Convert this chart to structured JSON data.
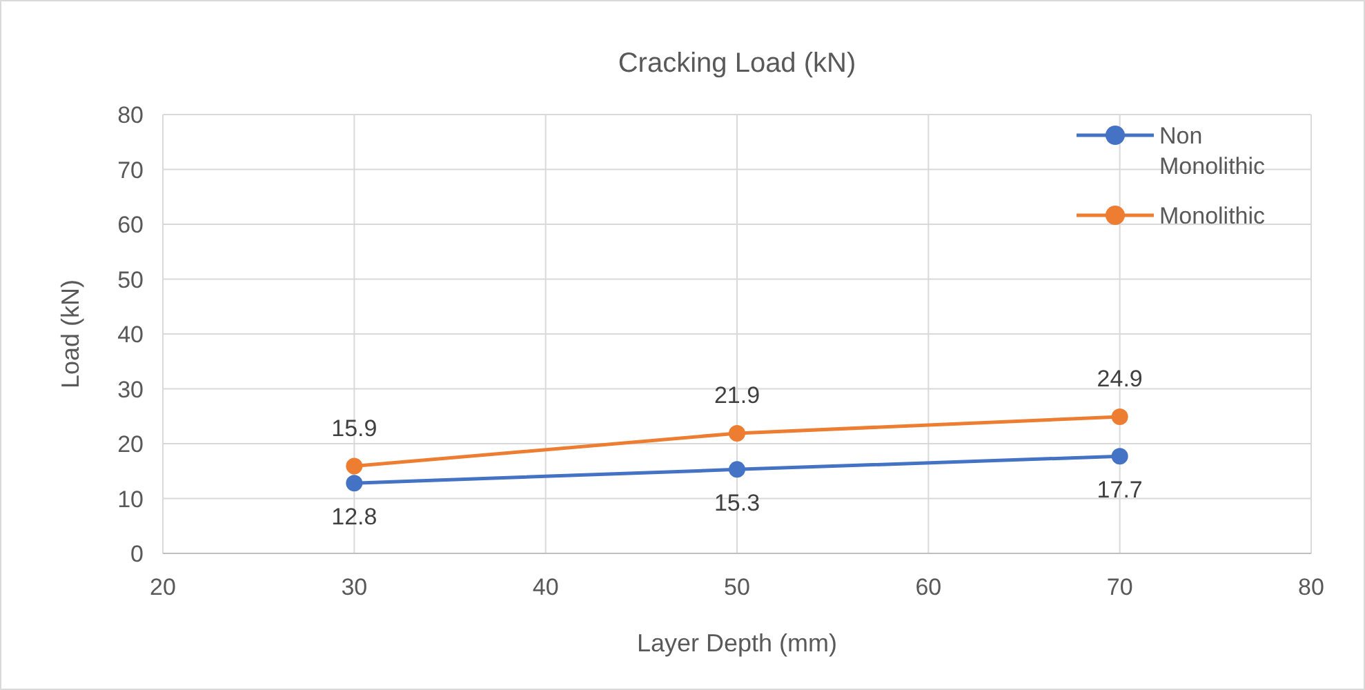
{
  "chart_data": {
    "type": "line",
    "title": "Cracking Load (kN)",
    "xlabel": "Layer Depth (mm)",
    "ylabel": "Load (kN)",
    "x": [
      30,
      50,
      70
    ],
    "series": [
      {
        "name": "Non Monolithic",
        "color": "#4472c4",
        "values": [
          12.8,
          15.3,
          17.7
        ]
      },
      {
        "name": "Monolithic",
        "color": "#ed7d31",
        "values": [
          15.9,
          21.9,
          24.9
        ]
      }
    ],
    "xlim": [
      20,
      80
    ],
    "xticks": [
      20,
      30,
      40,
      50,
      60,
      70,
      80
    ],
    "ylim": [
      0,
      80
    ],
    "yticks": [
      0,
      10,
      20,
      30,
      40,
      50,
      60,
      70,
      80
    ],
    "grid": true,
    "legend": "top right",
    "marker": "circle",
    "data_labels": true
  }
}
